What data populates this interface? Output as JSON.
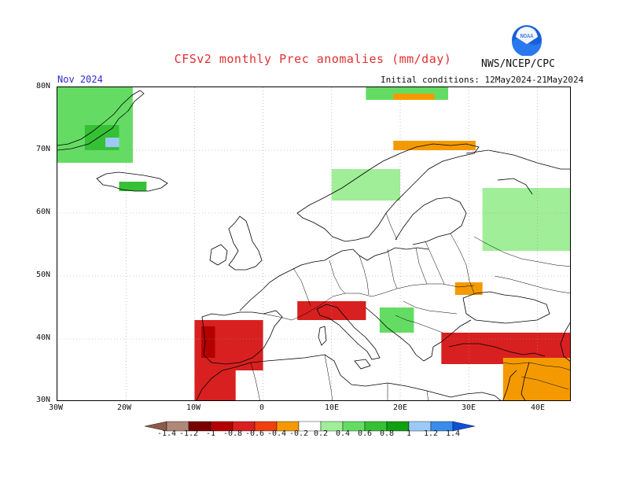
{
  "header": {
    "title": "CFSv2 monthly Prec anomalies (mm/day)",
    "agency": "NWS/NCEP/CPC",
    "logo_text": "NOAA",
    "target_month": "Nov 2024",
    "initial_conditions": "Initial conditions: 12May2024-21May2024"
  },
  "axes": {
    "lat_labels": [
      "80N",
      "70N",
      "60N",
      "50N",
      "40N",
      "30N"
    ],
    "lon_labels": [
      "30W",
      "20W",
      "10W",
      "0",
      "10E",
      "20E",
      "30E",
      "40E"
    ]
  },
  "colorbar": {
    "labels": [
      "-1.4",
      "-1.2",
      "-1",
      "-0.8",
      "-0.6",
      "-0.4",
      "-0.2",
      "0.2",
      "0.4",
      "0.6",
      "0.8",
      "1",
      "1.2",
      "1.4"
    ],
    "colors": [
      "#8c5a4a",
      "#b08878",
      "#7a0000",
      "#b40000",
      "#d82020",
      "#f04010",
      "#f49a00",
      "#ffffff",
      "#a0ee98",
      "#64dc64",
      "#36c036",
      "#10a010",
      "#9ccaf8",
      "#3a8cec",
      "#1050d8"
    ]
  },
  "map": {
    "projection": "lat-lon",
    "lon_range": [
      -30,
      45
    ],
    "lat_range": [
      30,
      80
    ],
    "grid": "dotted",
    "anomaly_regions": [
      {
        "area": "Greenland coast",
        "lon": [
          -30,
          -19
        ],
        "lat": [
          68,
          80
        ],
        "class": "0.4"
      },
      {
        "area": "Greenland east",
        "lon": [
          -26,
          -21
        ],
        "lat": [
          70,
          74
        ],
        "class": "0.6"
      },
      {
        "area": "Greenland spot",
        "lon": [
          -23,
          -21
        ],
        "lat": [
          70.5,
          72
        ],
        "class": "1"
      },
      {
        "area": "Iceland",
        "lon": [
          -21,
          -17
        ],
        "lat": [
          63.5,
          65
        ],
        "class": "0.6"
      },
      {
        "area": "Svalbard",
        "lon": [
          15,
          27
        ],
        "lat": [
          78,
          80
        ],
        "class": "0.4"
      },
      {
        "area": "Svalbard south",
        "lon": [
          19,
          25
        ],
        "lat": [
          78,
          79
        ],
        "class": "-0.2"
      },
      {
        "area": "North Cape",
        "lon": [
          19,
          31
        ],
        "lat": [
          70,
          71.5
        ],
        "class": "-0.2"
      },
      {
        "area": "Scandinavia",
        "lon": [
          10,
          20
        ],
        "lat": [
          62,
          67
        ],
        "class": "0.2"
      },
      {
        "area": "Western Russia",
        "lon": [
          32,
          45
        ],
        "lat": [
          54,
          64
        ],
        "class": "0.2"
      },
      {
        "area": "Iberia",
        "lon": [
          -10,
          0
        ],
        "lat": [
          35,
          43
        ],
        "class": "-0.6"
      },
      {
        "area": "Portugal",
        "lon": [
          -9,
          -7
        ],
        "lat": [
          37,
          42
        ],
        "class": "-0.8"
      },
      {
        "area": "Morocco",
        "lon": [
          -10,
          -4
        ],
        "lat": [
          30,
          35
        ],
        "class": "-0.6"
      },
      {
        "area": "Northern Italy",
        "lon": [
          5,
          15
        ],
        "lat": [
          43,
          46
        ],
        "class": "-0.6"
      },
      {
        "area": "Turkey",
        "lon": [
          26,
          45
        ],
        "lat": [
          36,
          41
        ],
        "class": "-0.6"
      },
      {
        "area": "Middle East",
        "lon": [
          35,
          45
        ],
        "lat": [
          30,
          37
        ],
        "class": "-0.2"
      },
      {
        "area": "Balkans",
        "lon": [
          17,
          22
        ],
        "lat": [
          41,
          45
        ],
        "class": "0.4"
      },
      {
        "area": "Ukraine",
        "lon": [
          28,
          32
        ],
        "lat": [
          47,
          49
        ],
        "class": "-0.2"
      }
    ]
  }
}
